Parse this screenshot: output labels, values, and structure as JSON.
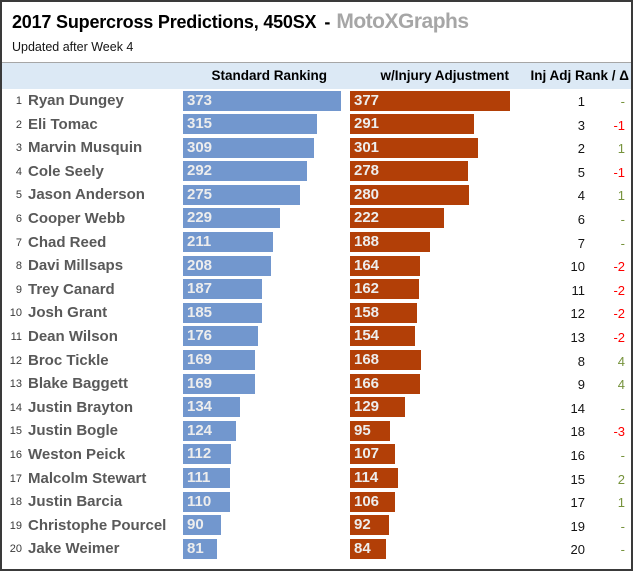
{
  "header": {
    "title": "2017 Supercross Predictions, 450SX",
    "separator": "-",
    "brand": "MotoXGraphs",
    "subtitle": "Updated after Week 4"
  },
  "columns": {
    "standard": "Standard Ranking",
    "injury": "w/Injury Adjustment",
    "inj_rank": "Inj Adj Rank / Δ"
  },
  "colors": {
    "standard_bar": "#7297ce",
    "injury_bar": "#b23f07",
    "bar_label": "#ededed",
    "delta_negative": "#ff0000",
    "delta_positive": "#76933c",
    "header_band_bg": "#dce9f5",
    "brand_gray": "#a6a6a6",
    "rider_name": "#595959"
  },
  "chart_data": {
    "type": "bar",
    "orientation": "horizontal",
    "title": "2017 Supercross Predictions, 450SX",
    "subtitle": "Updated after Week 4",
    "max_value": 377,
    "legend_position": "top",
    "grid": false,
    "categories": [
      "Ryan Dungey",
      "Eli Tomac",
      "Marvin Musquin",
      "Cole Seely",
      "Jason Anderson",
      "Cooper Webb",
      "Chad Reed",
      "Davi Millsaps",
      "Trey Canard",
      "Josh Grant",
      "Dean Wilson",
      "Broc Tickle",
      "Blake Baggett",
      "Justin Brayton",
      "Justin Bogle",
      "Weston Peick",
      "Malcolm Stewart",
      "Justin Barcia",
      "Christophe Pourcel",
      "Jake Weimer"
    ],
    "ranks": [
      1,
      2,
      3,
      4,
      5,
      6,
      7,
      8,
      9,
      10,
      11,
      12,
      13,
      14,
      15,
      16,
      17,
      18,
      19,
      20
    ],
    "series": [
      {
        "name": "Standard Ranking",
        "values": [
          373,
          315,
          309,
          292,
          275,
          229,
          211,
          208,
          187,
          185,
          176,
          169,
          169,
          134,
          124,
          112,
          111,
          110,
          90,
          81
        ]
      },
      {
        "name": "w/Injury Adjustment",
        "values": [
          377,
          291,
          301,
          278,
          280,
          222,
          188,
          164,
          162,
          158,
          154,
          168,
          166,
          129,
          95,
          107,
          114,
          106,
          92,
          84
        ]
      }
    ],
    "inj_adj_ranks": [
      1,
      3,
      2,
      5,
      4,
      6,
      7,
      10,
      11,
      12,
      13,
      8,
      9,
      14,
      18,
      16,
      15,
      17,
      19,
      20
    ],
    "deltas": [
      "-",
      "-1",
      "1",
      "-1",
      "1",
      "-",
      "-",
      "-2",
      "-2",
      "-2",
      "-2",
      "4",
      "4",
      "-",
      "-3",
      "-",
      "2",
      "1",
      "-",
      "-"
    ]
  }
}
